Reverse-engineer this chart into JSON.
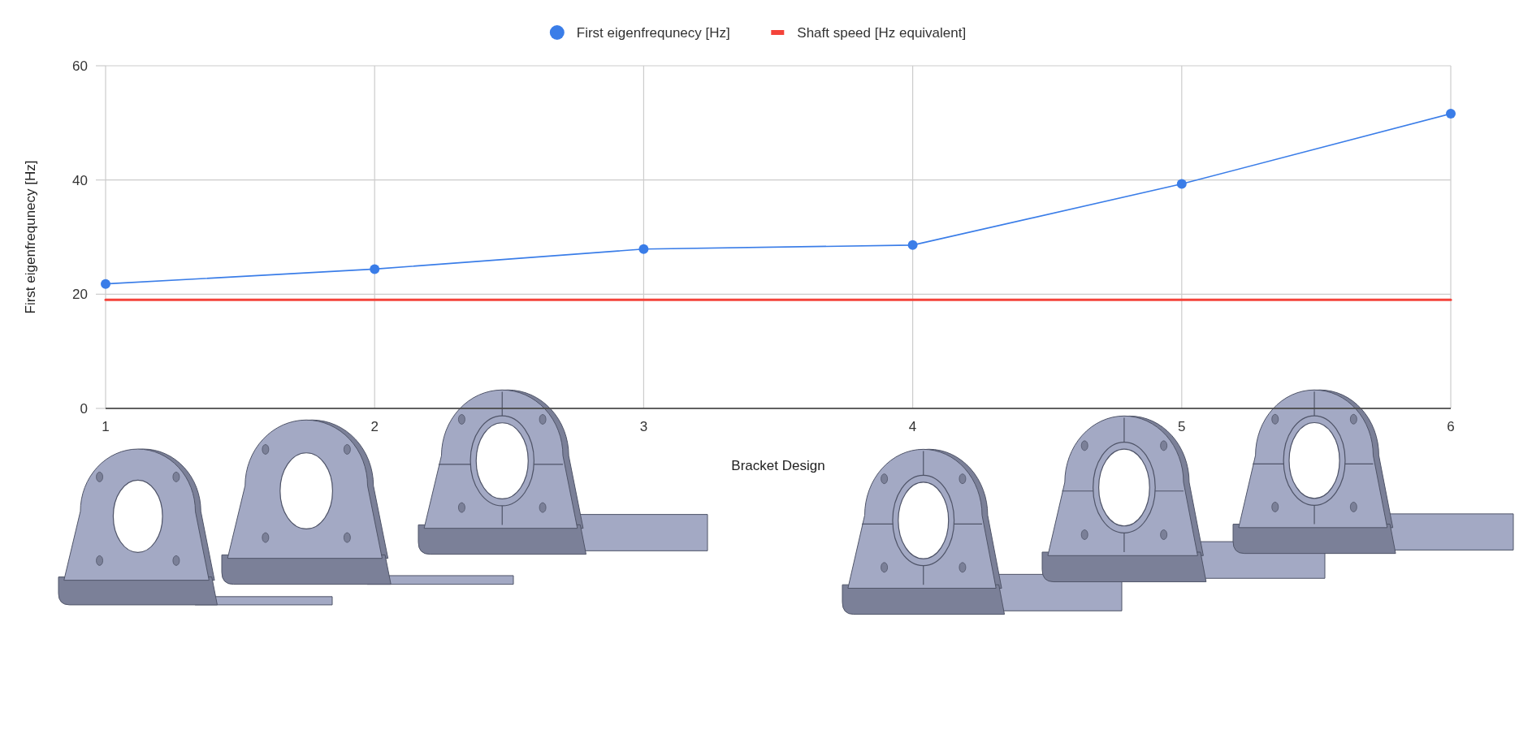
{
  "chart_data": {
    "type": "line",
    "xlabel": "Bracket Design",
    "ylabel": "First eigenfrequnecy [Hz]",
    "x": [
      1,
      2,
      3,
      4,
      5,
      6
    ],
    "xlim": [
      1,
      6
    ],
    "xticks": [
      1,
      2,
      3,
      4,
      5,
      6
    ],
    "ylim": [
      0,
      60
    ],
    "yticks": [
      0,
      20,
      40,
      60
    ],
    "grid": true,
    "legend": "top",
    "marker": "circle",
    "series": [
      {
        "name": "First eigenfrequnecy [Hz]",
        "color": "#3a7de8",
        "values": [
          21.8,
          24.4,
          27.9,
          28.6,
          39.3,
          51.6
        ]
      },
      {
        "name": "Shaft speed [Hz equivalent]",
        "color": "#f4433a",
        "values": [
          19,
          19,
          19,
          19,
          19,
          19
        ],
        "marker": "none"
      }
    ]
  }
}
